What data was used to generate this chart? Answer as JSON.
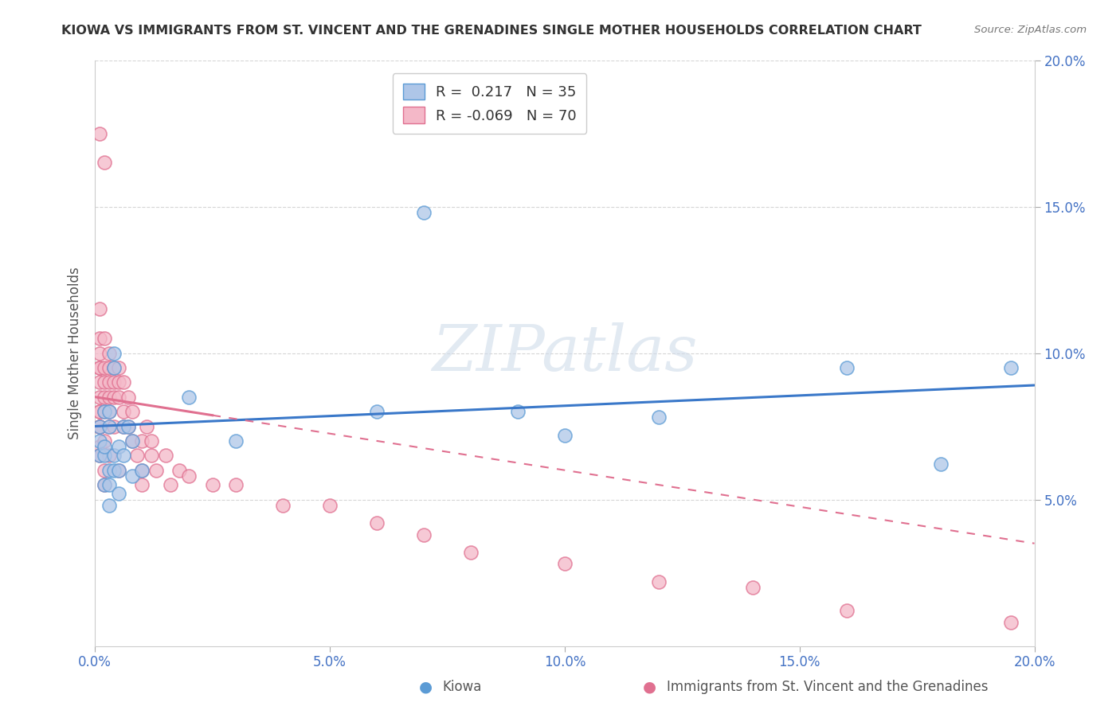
{
  "title": "KIOWA VS IMMIGRANTS FROM ST. VINCENT AND THE GRENADINES SINGLE MOTHER HOUSEHOLDS CORRELATION CHART",
  "source": "Source: ZipAtlas.com",
  "ylabel": "Single Mother Households",
  "legend_label1": "Kiowa",
  "legend_label2": "Immigrants from St. Vincent and the Grenadines",
  "R1": 0.217,
  "N1": 35,
  "R2": -0.069,
  "N2": 70,
  "color_blue": "#aec6e8",
  "color_pink": "#f4b8c8",
  "edge_blue": "#5b9bd5",
  "edge_pink": "#e07090",
  "line_blue": "#3a78c9",
  "line_pink": "#e07090",
  "watermark": "ZIPatlas",
  "xlim": [
    0.0,
    0.2
  ],
  "ylim": [
    0.0,
    0.2
  ],
  "xticks": [
    0.0,
    0.05,
    0.1,
    0.15,
    0.2
  ],
  "yticks": [
    0.05,
    0.1,
    0.15,
    0.2
  ],
  "blue_line_x0": 0.0,
  "blue_line_y0": 0.075,
  "blue_line_x1": 0.2,
  "blue_line_y1": 0.089,
  "pink_line_x0": 0.0,
  "pink_line_y0": 0.085,
  "pink_line_x1": 0.2,
  "pink_line_y1": 0.035,
  "kiowa_x": [
    0.001,
    0.001,
    0.001,
    0.002,
    0.002,
    0.002,
    0.002,
    0.003,
    0.003,
    0.003,
    0.003,
    0.003,
    0.004,
    0.004,
    0.004,
    0.004,
    0.005,
    0.005,
    0.005,
    0.006,
    0.006,
    0.007,
    0.008,
    0.008,
    0.01,
    0.02,
    0.03,
    0.06,
    0.07,
    0.09,
    0.1,
    0.12,
    0.16,
    0.18,
    0.195
  ],
  "kiowa_y": [
    0.07,
    0.065,
    0.075,
    0.08,
    0.065,
    0.068,
    0.055,
    0.075,
    0.08,
    0.06,
    0.048,
    0.055,
    0.095,
    0.1,
    0.065,
    0.06,
    0.06,
    0.052,
    0.068,
    0.075,
    0.065,
    0.075,
    0.07,
    0.058,
    0.06,
    0.085,
    0.07,
    0.08,
    0.148,
    0.08,
    0.072,
    0.078,
    0.095,
    0.062,
    0.095
  ],
  "svg_x": [
    0.001,
    0.001,
    0.001,
    0.001,
    0.001,
    0.001,
    0.001,
    0.001,
    0.001,
    0.001,
    0.001,
    0.001,
    0.001,
    0.001,
    0.001,
    0.002,
    0.002,
    0.002,
    0.002,
    0.002,
    0.002,
    0.002,
    0.002,
    0.002,
    0.003,
    0.003,
    0.003,
    0.003,
    0.003,
    0.003,
    0.003,
    0.004,
    0.004,
    0.004,
    0.004,
    0.005,
    0.005,
    0.005,
    0.005,
    0.006,
    0.006,
    0.006,
    0.007,
    0.007,
    0.008,
    0.008,
    0.009,
    0.01,
    0.01,
    0.01,
    0.011,
    0.012,
    0.012,
    0.013,
    0.015,
    0.016,
    0.018,
    0.02,
    0.025,
    0.03,
    0.04,
    0.05,
    0.06,
    0.07,
    0.08,
    0.1,
    0.12,
    0.14,
    0.16,
    0.195
  ],
  "svg_y": [
    0.085,
    0.08,
    0.075,
    0.095,
    0.1,
    0.075,
    0.068,
    0.065,
    0.09,
    0.08,
    0.105,
    0.095,
    0.115,
    0.075,
    0.175,
    0.085,
    0.09,
    0.095,
    0.105,
    0.165,
    0.08,
    0.07,
    0.06,
    0.055,
    0.09,
    0.1,
    0.08,
    0.075,
    0.065,
    0.095,
    0.085,
    0.09,
    0.095,
    0.085,
    0.075,
    0.09,
    0.095,
    0.085,
    0.06,
    0.09,
    0.08,
    0.075,
    0.085,
    0.075,
    0.08,
    0.07,
    0.065,
    0.07,
    0.06,
    0.055,
    0.075,
    0.07,
    0.065,
    0.06,
    0.065,
    0.055,
    0.06,
    0.058,
    0.055,
    0.055,
    0.048,
    0.048,
    0.042,
    0.038,
    0.032,
    0.028,
    0.022,
    0.02,
    0.012,
    0.008
  ]
}
